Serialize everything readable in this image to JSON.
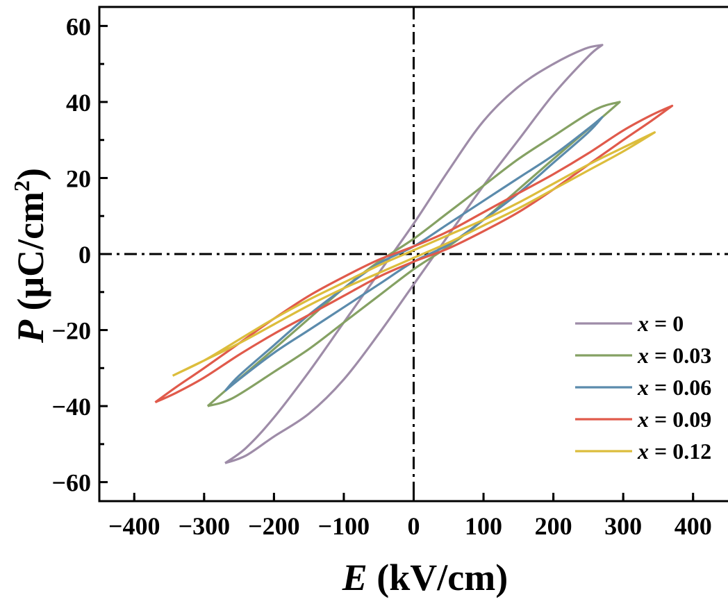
{
  "chart_data": {
    "type": "line",
    "title": "",
    "xlabel": {
      "symbol": "E",
      "unit": " (kV/cm)"
    },
    "ylabel": {
      "symbol": "P",
      "unit_prefix": " (μC/cm",
      "unit_sup": "2",
      "unit_suffix": ")"
    },
    "xlim": [
      -450,
      450
    ],
    "ylim": [
      -65,
      65
    ],
    "xticks": [
      {
        "value": -400,
        "label": "−400"
      },
      {
        "value": -300,
        "label": "−300"
      },
      {
        "value": -200,
        "label": "−200"
      },
      {
        "value": -100,
        "label": "−100"
      },
      {
        "value": 0,
        "label": "0"
      },
      {
        "value": 100,
        "label": "100"
      },
      {
        "value": 200,
        "label": "200"
      },
      {
        "value": 300,
        "label": "300"
      },
      {
        "value": 400,
        "label": "400"
      }
    ],
    "yticks": [
      {
        "value": -60,
        "label": "−60"
      },
      {
        "value": -40,
        "label": "−40"
      },
      {
        "value": -20,
        "label": "−20"
      },
      {
        "value": 0,
        "label": "0"
      },
      {
        "value": 20,
        "label": "20"
      },
      {
        "value": 40,
        "label": "40"
      },
      {
        "value": 60,
        "label": "60"
      }
    ],
    "reference_lines": {
      "x": 0,
      "y": 0,
      "style": "dash-dot"
    },
    "grid": false,
    "legend_position": "bottom-right",
    "series": [
      {
        "name_var": "x",
        "name_value": " = 0",
        "color": "#9e8ca8",
        "upper": [
          [
            -270,
            -55
          ],
          [
            -240,
            -51
          ],
          [
            -200,
            -43
          ],
          [
            -150,
            -31
          ],
          [
            -100,
            -18
          ],
          [
            -50,
            -5
          ],
          [
            0,
            8
          ],
          [
            50,
            22
          ],
          [
            100,
            35
          ],
          [
            150,
            44
          ],
          [
            200,
            50
          ],
          [
            245,
            54
          ],
          [
            270,
            55
          ]
        ],
        "lower": [
          [
            270,
            55
          ],
          [
            250,
            52
          ],
          [
            200,
            42
          ],
          [
            150,
            30
          ],
          [
            100,
            18
          ],
          [
            50,
            5
          ],
          [
            0,
            -8
          ],
          [
            -50,
            -21
          ],
          [
            -100,
            -33
          ],
          [
            -150,
            -42
          ],
          [
            -200,
            -48
          ],
          [
            -240,
            -53
          ],
          [
            -270,
            -55
          ]
        ]
      },
      {
        "name_var": "x",
        "name_value": " = 0.03",
        "color": "#85a163",
        "upper": [
          [
            -295,
            -40
          ],
          [
            -270,
            -36
          ],
          [
            -200,
            -25
          ],
          [
            -150,
            -17
          ],
          [
            -100,
            -9
          ],
          [
            -50,
            -2
          ],
          [
            0,
            4
          ],
          [
            50,
            11
          ],
          [
            100,
            18
          ],
          [
            150,
            25
          ],
          [
            200,
            31
          ],
          [
            260,
            38
          ],
          [
            295,
            40
          ]
        ],
        "lower": [
          [
            295,
            40
          ],
          [
            270,
            36
          ],
          [
            200,
            25
          ],
          [
            150,
            17
          ],
          [
            100,
            9
          ],
          [
            50,
            2
          ],
          [
            0,
            -4
          ],
          [
            -50,
            -11
          ],
          [
            -100,
            -18
          ],
          [
            -150,
            -25
          ],
          [
            -200,
            -31
          ],
          [
            -260,
            -38
          ],
          [
            -295,
            -40
          ]
        ]
      },
      {
        "name_var": "x",
        "name_value": " = 0.06",
        "color": "#5b8bac",
        "upper": [
          [
            -270,
            -36
          ],
          [
            -250,
            -32
          ],
          [
            -200,
            -24
          ],
          [
            -150,
            -16
          ],
          [
            -100,
            -9
          ],
          [
            -50,
            -2.5
          ],
          [
            0,
            2
          ],
          [
            50,
            8
          ],
          [
            100,
            14
          ],
          [
            150,
            20
          ],
          [
            200,
            26
          ],
          [
            250,
            33
          ],
          [
            270,
            36
          ]
        ],
        "lower": [
          [
            270,
            36
          ],
          [
            250,
            32
          ],
          [
            200,
            24
          ],
          [
            150,
            16
          ],
          [
            100,
            9
          ],
          [
            50,
            2.5
          ],
          [
            0,
            -2
          ],
          [
            -50,
            -8
          ],
          [
            -100,
            -14
          ],
          [
            -150,
            -20
          ],
          [
            -200,
            -26
          ],
          [
            -250,
            -33
          ],
          [
            -270,
            -36
          ]
        ]
      },
      {
        "name_var": "x",
        "name_value": " = 0.09",
        "color": "#e05a4b",
        "upper": [
          [
            -370,
            -39
          ],
          [
            -340,
            -35
          ],
          [
            -300,
            -30
          ],
          [
            -250,
            -23.5
          ],
          [
            -200,
            -17
          ],
          [
            -150,
            -11
          ],
          [
            -100,
            -6
          ],
          [
            -50,
            -1.5
          ],
          [
            0,
            2
          ],
          [
            50,
            6
          ],
          [
            100,
            11
          ],
          [
            150,
            16
          ],
          [
            200,
            21
          ],
          [
            250,
            26.5
          ],
          [
            300,
            32.5
          ],
          [
            340,
            36.5
          ],
          [
            370,
            39
          ]
        ],
        "lower": [
          [
            370,
            39
          ],
          [
            340,
            35
          ],
          [
            300,
            30
          ],
          [
            250,
            23.5
          ],
          [
            200,
            17
          ],
          [
            150,
            11
          ],
          [
            100,
            6
          ],
          [
            50,
            1.5
          ],
          [
            0,
            -2
          ],
          [
            -50,
            -6
          ],
          [
            -100,
            -11
          ],
          [
            -150,
            -16
          ],
          [
            -200,
            -21
          ],
          [
            -250,
            -26.5
          ],
          [
            -300,
            -32.5
          ],
          [
            -340,
            -36.5
          ],
          [
            -370,
            -39
          ]
        ]
      },
      {
        "name_var": "x",
        "name_value": " = 0.12",
        "color": "#dcbd3c",
        "upper": [
          [
            -345,
            -32
          ],
          [
            -300,
            -28
          ],
          [
            -250,
            -22.5
          ],
          [
            -200,
            -17
          ],
          [
            -150,
            -12
          ],
          [
            -100,
            -7.5
          ],
          [
            -50,
            -3
          ],
          [
            0,
            1
          ],
          [
            50,
            5
          ],
          [
            100,
            9
          ],
          [
            150,
            13.5
          ],
          [
            200,
            18.5
          ],
          [
            250,
            23.5
          ],
          [
            300,
            28
          ],
          [
            345,
            32
          ]
        ],
        "lower": [
          [
            345,
            32
          ],
          [
            300,
            27
          ],
          [
            250,
            22
          ],
          [
            200,
            17
          ],
          [
            150,
            12
          ],
          [
            100,
            7.5
          ],
          [
            50,
            3
          ],
          [
            0,
            -1
          ],
          [
            -50,
            -5
          ],
          [
            -100,
            -9
          ],
          [
            -150,
            -13.5
          ],
          [
            -200,
            -18.5
          ],
          [
            -250,
            -23.5
          ],
          [
            -300,
            -28
          ],
          [
            -345,
            -32
          ]
        ]
      }
    ]
  }
}
